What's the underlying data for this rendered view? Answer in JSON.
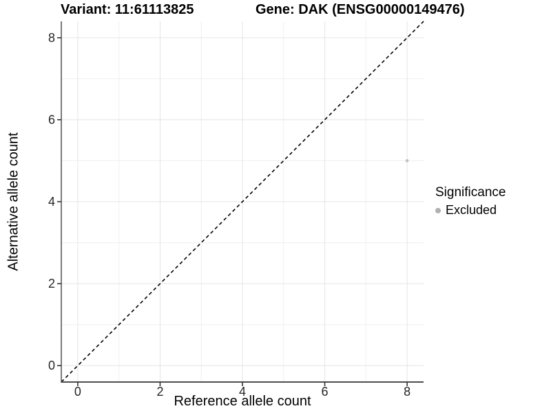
{
  "chart_data": {
    "type": "scatter",
    "title_left": "Variant: 11:61113825",
    "title_right": "Gene: DAK (ENSG00000149476)",
    "xlabel": "Reference allele count",
    "ylabel": "Alternative allele count",
    "xlim": [
      -0.4,
      8.4
    ],
    "ylim": [
      -0.4,
      8.4
    ],
    "x_ticks": [
      0,
      2,
      4,
      6,
      8
    ],
    "y_ticks": [
      0,
      2,
      4,
      6,
      8
    ],
    "x_minor_gridlines": [
      1,
      3,
      5,
      7
    ],
    "y_minor_gridlines": [
      1,
      3,
      5,
      7
    ],
    "grid": true,
    "points": [
      {
        "x": 8,
        "y": 5,
        "significance": "Excluded"
      }
    ],
    "identity_line": {
      "equation": "y = x",
      "style": "dashed",
      "color": "#000000"
    },
    "legend": {
      "position": "right",
      "title": "Significance",
      "items": [
        {
          "label": "Excluded",
          "marker": "circle",
          "color": "#b0b0b0"
        }
      ]
    },
    "colors": {
      "background": "#ffffff",
      "point": "#c2c2c2",
      "grid_major": "#e4e4e4",
      "grid_minor": "#efefef",
      "axis_line": "#4d4d4d",
      "tick": "#333333",
      "text": "#000000"
    }
  }
}
